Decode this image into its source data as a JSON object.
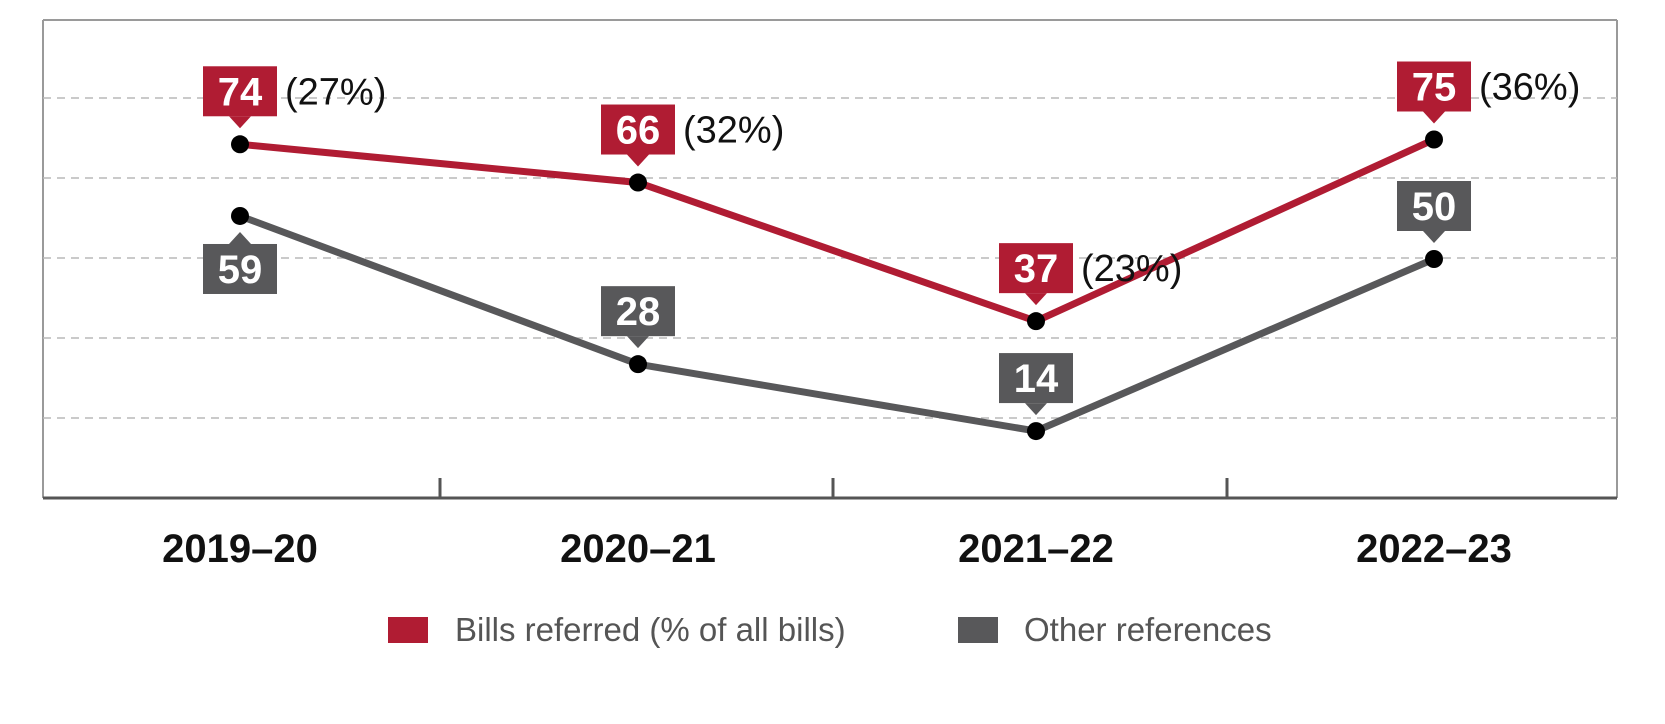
{
  "chart_data": {
    "type": "line",
    "categories": [
      "2019–20",
      "2020–21",
      "2021–22",
      "2022–23"
    ],
    "ylim": [
      0,
      100
    ],
    "grid": true,
    "legend_position": "bottom",
    "series": [
      {
        "name": "Bills referred (% of all bills)",
        "color": "#b01c33",
        "values": [
          74,
          66,
          37,
          75
        ],
        "percent_labels": [
          "(27%)",
          "(32%)",
          "(23%)",
          "(36%)"
        ]
      },
      {
        "name": "Other references",
        "color": "#58585a",
        "values": [
          59,
          28,
          14,
          50
        ]
      }
    ],
    "legend": {
      "bills_label": "Bills referred (% of all bills)",
      "other_label": "Other references"
    }
  }
}
